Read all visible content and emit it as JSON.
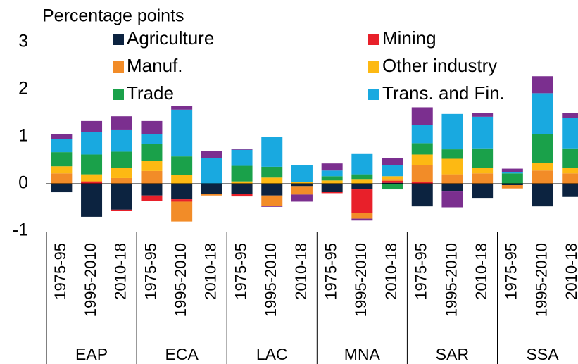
{
  "chart_data": {
    "type": "stacked_bar",
    "ylabel": "Percentage points",
    "categories": [
      "1975-95",
      "1995-2010",
      "2010-18",
      "1975-95",
      "1995-2010",
      "2010-18",
      "1975-95",
      "1995-2010",
      "2010-18",
      "1975-95",
      "1995-2010",
      "2010-18",
      "1975-95",
      "1995-2010",
      "2010-18",
      "1975-95",
      "1995-2010",
      "2010-18"
    ],
    "groups": [
      "EAP",
      "ECA",
      "LAC",
      "MNA",
      "SAR",
      "SSA"
    ],
    "ylim": [
      -1,
      3
    ],
    "yticks": [
      -1,
      0,
      1,
      2,
      3
    ],
    "series": [
      {
        "name": "Agriculture",
        "color": "#0c2340",
        "values": [
          -0.18,
          -0.7,
          -0.55,
          -0.25,
          -0.33,
          -0.22,
          -0.22,
          -0.25,
          -0.05,
          -0.17,
          -0.12,
          0.02,
          -0.48,
          -0.15,
          -0.3,
          -0.03,
          -0.48,
          -0.28
        ]
      },
      {
        "name": "Mining",
        "color": "#e8202a",
        "values": [
          0,
          0.03,
          -0.02,
          -0.12,
          -0.05,
          0,
          -0.05,
          0,
          0,
          -0.03,
          -0.5,
          0.04,
          0.04,
          0,
          0,
          0,
          0,
          0
        ]
      },
      {
        "name": "Manuf.",
        "color": "#f28c28",
        "values": [
          0.22,
          0.03,
          0.12,
          0.27,
          -0.42,
          -0.03,
          0,
          -0.22,
          -0.18,
          0,
          -0.12,
          0.04,
          0.36,
          0.2,
          0.22,
          -0.07,
          0.28,
          0.22
        ]
      },
      {
        "name": "Other industry",
        "color": "#fdb913",
        "values": [
          0.15,
          0.14,
          0.21,
          0.21,
          0.18,
          0,
          0.05,
          0.13,
          0.04,
          0.07,
          0.1,
          0.06,
          0.22,
          0.33,
          0.11,
          0,
          0.16,
          0.12
        ]
      },
      {
        "name": "Trade",
        "color": "#1aa14a",
        "values": [
          0.3,
          0.42,
          0.35,
          0.36,
          0.4,
          0,
          0.33,
          0.23,
          0,
          0.09,
          0.1,
          -0.12,
          0.24,
          0.2,
          0.42,
          0.22,
          0.61,
          0.41
        ]
      },
      {
        "name": "Trans. and Fin.",
        "color": "#19a9e0",
        "values": [
          0.28,
          0.48,
          0.47,
          0.21,
          0.99,
          0.55,
          0.34,
          0.64,
          0.36,
          0.12,
          0.43,
          0.24,
          0.39,
          0.75,
          0.67,
          0.03,
          0.87,
          0.65
        ]
      },
      {
        "name": null,
        "color": "#7b2f8f",
        "values": [
          0.1,
          0.23,
          0.28,
          0.28,
          0.08,
          0.15,
          0.02,
          -0.02,
          -0.15,
          0.15,
          -0.04,
          0.15,
          0.37,
          -0.35,
          0.08,
          0.07,
          0.36,
          0.1
        ]
      }
    ]
  }
}
